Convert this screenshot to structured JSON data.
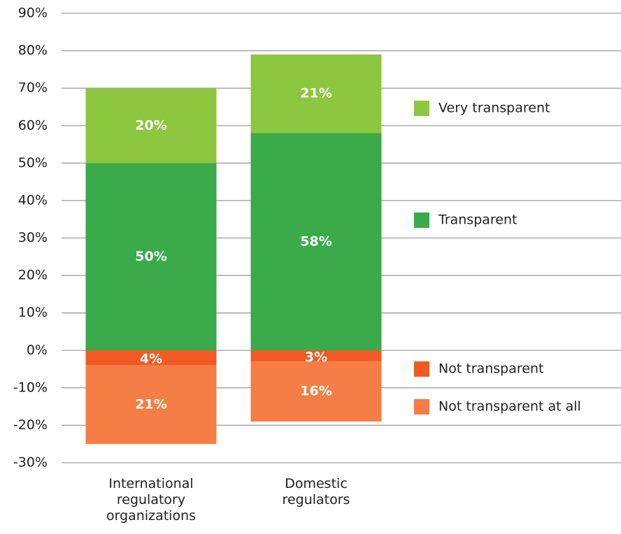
{
  "chart_data": {
    "type": "bar",
    "stacked": true,
    "categories": [
      "International regulatory organizations",
      "Domestic regulators"
    ],
    "series": [
      {
        "name": "Very transparent",
        "color": "#8dc63f",
        "values": [
          20,
          21
        ],
        "value_labels": [
          "20%",
          "21%"
        ]
      },
      {
        "name": "Transparent",
        "color": "#3aaa4a",
        "values": [
          50,
          58
        ],
        "value_labels": [
          "50%",
          "58%"
        ]
      },
      {
        "name": "Not transparent",
        "color": "#f15a24",
        "values": [
          -4,
          -3
        ],
        "value_labels": [
          "4%",
          "3%"
        ]
      },
      {
        "name": "Not transparent at all",
        "color": "#f47e45",
        "values": [
          -21,
          -16
        ],
        "value_labels": [
          "21%",
          "16%"
        ]
      }
    ],
    "ylim": [
      -30,
      90
    ],
    "yticks": [
      {
        "value": -30,
        "label": "-30%"
      },
      {
        "value": -20,
        "label": "-20%"
      },
      {
        "value": -10,
        "label": "-10%"
      },
      {
        "value": 0,
        "label": "0%"
      },
      {
        "value": 10,
        "label": "10%"
      },
      {
        "value": 20,
        "label": "20%"
      },
      {
        "value": 30,
        "label": "30%"
      },
      {
        "value": 40,
        "label": "40%"
      },
      {
        "value": 50,
        "label": "50%"
      },
      {
        "value": 60,
        "label": "60%"
      },
      {
        "value": 70,
        "label": "70%"
      },
      {
        "value": 80,
        "label": "80%"
      },
      {
        "value": 90,
        "label": "90%"
      }
    ],
    "grid": true,
    "legend": "right"
  }
}
